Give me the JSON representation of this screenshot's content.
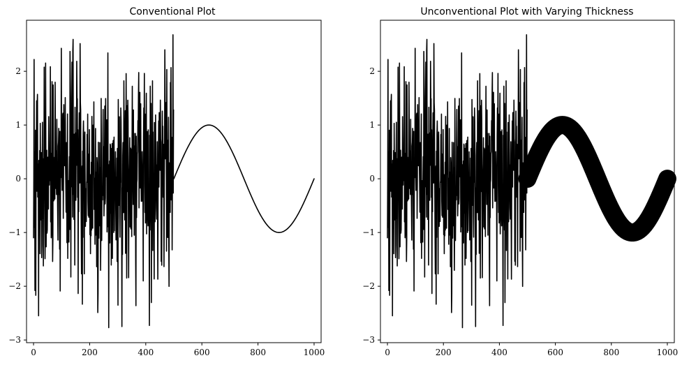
{
  "chart_data": [
    {
      "type": "line",
      "title": "Conventional Plot",
      "xlabel": "",
      "ylabel": "",
      "xlim": [
        -25,
        1025
      ],
      "ylim": [
        -3.05,
        2.95
      ],
      "x_ticks": [
        0,
        200,
        400,
        600,
        800,
        1000
      ],
      "y_ticks": [
        -3,
        -2,
        -1,
        0,
        1,
        2
      ],
      "grid": false,
      "line_color": "#000000",
      "line_width": "constant",
      "segments": [
        {
          "kind": "random noise",
          "x_range": [
            0,
            499
          ],
          "value_range": [
            -2.75,
            2.68
          ],
          "noise_extremes": [
            {
              "x": 2,
              "y": 2.22
            },
            {
              "x": 18,
              "y": -2.55
            },
            {
              "x": 140,
              "y": 2.38
            },
            {
              "x": 268,
              "y": -2.77
            },
            {
              "x": 413,
              "y": -2.73
            },
            {
              "x": 468,
              "y": 2.4
            },
            {
              "x": 497,
              "y": 2.68
            }
          ]
        },
        {
          "kind": "sine wave",
          "x_range": [
            500,
            1000
          ],
          "function": "sin(2*pi*(x-500)/500)",
          "amplitude": 1.0,
          "peak": {
            "x": 625,
            "y": 1.0
          },
          "trough": {
            "x": 875,
            "y": -1.0
          }
        }
      ]
    },
    {
      "type": "line",
      "title": "Unconventional Plot with Varying Thickness",
      "xlabel": "",
      "ylabel": "",
      "xlim": [
        -25,
        1025
      ],
      "ylim": [
        -3.05,
        2.95
      ],
      "x_ticks": [
        0,
        200,
        400,
        600,
        800,
        1000
      ],
      "y_ticks": [
        -3,
        -2,
        -1,
        0,
        1,
        2
      ],
      "grid": false,
      "line_color": "#000000",
      "line_width": "thin for noise segment, very thick for sine segment",
      "segments": [
        {
          "kind": "random noise",
          "x_range": [
            0,
            499
          ],
          "value_range": [
            -2.75,
            2.68
          ]
        },
        {
          "kind": "sine wave",
          "x_range": [
            500,
            1000
          ],
          "function": "sin(2*pi*(x-500)/500)",
          "amplitude": 1.0,
          "peak": {
            "x": 625,
            "y": 1.0
          },
          "trough": {
            "x": 875,
            "y": -1.0
          }
        }
      ]
    }
  ]
}
